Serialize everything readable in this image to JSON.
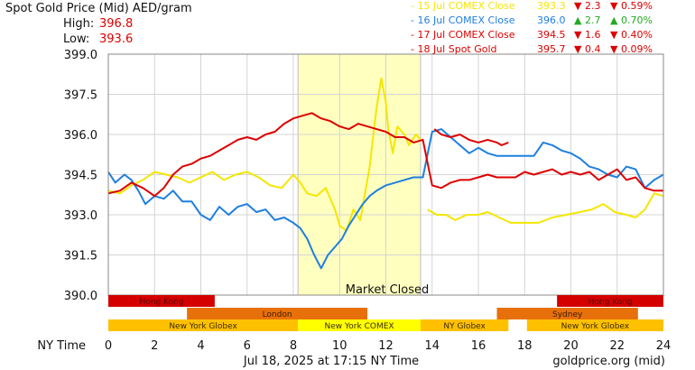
{
  "header": {
    "title": "Spot Gold Price (Mid) AED/gram",
    "high_label": "High:",
    "high_value": "396.8",
    "low_label": "Low:",
    "low_value": "393.6"
  },
  "legend": [
    {
      "label": "15 Jul COMEX Close",
      "price": "393.3",
      "arrow": "▼",
      "change": "2.3",
      "arrow2": "▼",
      "pct": "0.59%",
      "color": "#f5e600",
      "change_color": "#dd0000"
    },
    {
      "label": "16 Jul COMEX Close",
      "price": "396.0",
      "arrow": "▲",
      "change": "2.7",
      "arrow2": "▲",
      "pct": "0.70%",
      "color": "#1e7fe0",
      "change_color": "#22aa22"
    },
    {
      "label": "17 Jul COMEX Close",
      "price": "394.5",
      "arrow": "▼",
      "change": "1.6",
      "arrow2": "▼",
      "pct": "0.40%",
      "color": "#dd0000",
      "change_color": "#dd0000"
    },
    {
      "label": "18 Jul Spot Gold",
      "price": "395.7",
      "arrow": "▼",
      "change": "0.4",
      "arrow2": "▼",
      "pct": "0.09%",
      "color": "#dd0000",
      "change_color": "#dd0000"
    }
  ],
  "footer": {
    "x_axis_title": "NY Time",
    "timestamp": "Jul 18, 2025 at 17:15 NY Time",
    "source": "goldprice.org (mid)"
  },
  "market_closed_label": "Market Closed",
  "sessions": [
    {
      "label": "Hong Kong",
      "start": 0,
      "end": 4.6,
      "row": 0,
      "color": "#d40000",
      "text_color": "#5a0000"
    },
    {
      "label": "Hong Kong",
      "start": 19.4,
      "end": 24,
      "row": 0,
      "color": "#d40000",
      "text_color": "#5a0000"
    },
    {
      "label": "London",
      "start": 3.4,
      "end": 11.2,
      "row": 1,
      "color": "#e8700a",
      "text_color": "#3a1a00"
    },
    {
      "label": "Sydney",
      "start": 16.8,
      "end": 22.9,
      "row": 1,
      "color": "#e8700a",
      "text_color": "#3a1a00"
    },
    {
      "label": "New York Globex",
      "start": 0,
      "end": 8.2,
      "row": 2,
      "color": "#ffc000",
      "text_color": "#3a2a00"
    },
    {
      "label": "New York COMEX",
      "start": 8.2,
      "end": 13.5,
      "row": 2,
      "color": "#ffff00",
      "text_color": "#3a2a00"
    },
    {
      "label": "NY Globex",
      "start": 13.5,
      "end": 17.3,
      "row": 2,
      "color": "#ffc000",
      "text_color": "#3a2a00"
    },
    {
      "label": "New York Globex",
      "start": 18.1,
      "end": 24,
      "row": 2,
      "color": "#ffc000",
      "text_color": "#3a2a00"
    }
  ],
  "chart_data": {
    "type": "line",
    "xlabel": "NY Time",
    "ylabel": "",
    "xlim": [
      0,
      24
    ],
    "ylim": [
      390.0,
      399.0
    ],
    "x_ticks": [
      0,
      2,
      4,
      6,
      8,
      10,
      12,
      14,
      16,
      18,
      20,
      22,
      24
    ],
    "x_tick_labels": [
      "0",
      "2",
      "4",
      "6",
      "8",
      "10",
      "12",
      "14",
      "16",
      "18",
      "20",
      "22",
      "24"
    ],
    "y_ticks": [
      390.0,
      391.5,
      393.0,
      394.5,
      396.0,
      397.5,
      399.0
    ],
    "y_tick_labels": [
      "390.0",
      "391.5",
      "393.0",
      "394.5",
      "396.0",
      "397.5",
      "399.0"
    ],
    "grid": true,
    "shaded_region": {
      "label": "Market Closed",
      "x_start": 8.2,
      "x_end": 13.5
    },
    "series": [
      {
        "name": "15 Jul COMEX Close",
        "color": "#f5e600",
        "segments": [
          [
            [
              0,
              393.9
            ],
            [
              0.5,
              393.8
            ],
            [
              1,
              394.1
            ],
            [
              1.5,
              394.3
            ],
            [
              2,
              394.6
            ],
            [
              2.5,
              394.5
            ],
            [
              3,
              394.4
            ],
            [
              3.5,
              394.2
            ],
            [
              4,
              394.4
            ],
            [
              4.5,
              394.6
            ],
            [
              5,
              394.3
            ],
            [
              5.5,
              394.5
            ],
            [
              6,
              394.6
            ],
            [
              6.5,
              394.4
            ],
            [
              7,
              394.1
            ],
            [
              7.5,
              394.0
            ],
            [
              8,
              394.5
            ],
            [
              8.3,
              394.2
            ],
            [
              8.6,
              393.8
            ],
            [
              9,
              393.7
            ],
            [
              9.4,
              394.0
            ],
            [
              9.8,
              393.2
            ],
            [
              10,
              392.6
            ],
            [
              10.3,
              392.4
            ],
            [
              10.6,
              393.2
            ],
            [
              10.9,
              392.8
            ],
            [
              11.1,
              393.8
            ],
            [
              11.3,
              394.8
            ],
            [
              11.5,
              396.3
            ],
            [
              11.6,
              397.0
            ],
            [
              11.8,
              398.1
            ],
            [
              12.0,
              397.2
            ],
            [
              12.1,
              396.2
            ],
            [
              12.3,
              395.3
            ],
            [
              12.5,
              396.3
            ],
            [
              12.8,
              396.0
            ],
            [
              13.0,
              395.6
            ],
            [
              13.3,
              396.0
            ],
            [
              13.5,
              395.8
            ]
          ],
          [
            [
              13.8,
              393.2
            ],
            [
              14.2,
              393.0
            ],
            [
              14.6,
              393.0
            ],
            [
              15.0,
              392.8
            ],
            [
              15.5,
              393.0
            ],
            [
              16.0,
              393.0
            ],
            [
              16.4,
              393.1
            ],
            [
              16.9,
              392.9
            ],
            [
              17.4,
              392.7
            ],
            [
              18.0,
              392.7
            ],
            [
              18.6,
              392.7
            ],
            [
              19.2,
              392.9
            ],
            [
              19.8,
              393.0
            ],
            [
              20.4,
              393.1
            ],
            [
              20.9,
              393.2
            ],
            [
              21.4,
              393.4
            ],
            [
              21.9,
              393.1
            ],
            [
              22.4,
              393.0
            ],
            [
              22.8,
              392.9
            ],
            [
              23.2,
              393.2
            ],
            [
              23.6,
              393.8
            ],
            [
              24.0,
              393.7
            ]
          ]
        ]
      },
      {
        "name": "16 Jul COMEX Close",
        "color": "#1e7fe0",
        "segments": [
          [
            [
              0,
              394.6
            ],
            [
              0.3,
              394.2
            ],
            [
              0.7,
              394.5
            ],
            [
              1.0,
              394.3
            ],
            [
              1.3,
              393.9
            ],
            [
              1.6,
              393.4
            ],
            [
              2.0,
              393.7
            ],
            [
              2.4,
              393.6
            ],
            [
              2.8,
              393.9
            ],
            [
              3.2,
              393.5
            ],
            [
              3.6,
              393.5
            ],
            [
              4.0,
              393.0
            ],
            [
              4.4,
              392.8
            ],
            [
              4.8,
              393.3
            ],
            [
              5.2,
              393.0
            ],
            [
              5.6,
              393.3
            ],
            [
              6.0,
              393.4
            ],
            [
              6.4,
              393.1
            ],
            [
              6.8,
              393.2
            ],
            [
              7.2,
              392.8
            ],
            [
              7.6,
              392.9
            ],
            [
              8.0,
              392.7
            ],
            [
              8.3,
              392.5
            ],
            [
              8.6,
              392.1
            ],
            [
              8.9,
              391.5
            ],
            [
              9.2,
              391.0
            ],
            [
              9.5,
              391.5
            ],
            [
              9.8,
              391.8
            ],
            [
              10.1,
              392.1
            ],
            [
              10.4,
              392.6
            ],
            [
              10.7,
              393.0
            ],
            [
              11.0,
              393.4
            ],
            [
              11.3,
              393.7
            ],
            [
              11.6,
              393.9
            ],
            [
              12.0,
              394.1
            ],
            [
              12.4,
              394.2
            ],
            [
              12.8,
              394.3
            ],
            [
              13.2,
              394.4
            ],
            [
              13.6,
              394.4
            ],
            [
              14.0,
              396.1
            ],
            [
              14.4,
              396.2
            ],
            [
              14.8,
              395.9
            ],
            [
              15.2,
              395.6
            ],
            [
              15.6,
              395.3
            ],
            [
              16.0,
              395.5
            ],
            [
              16.4,
              395.3
            ],
            [
              16.8,
              395.2
            ],
            [
              17.2,
              395.2
            ],
            [
              17.6,
              395.2
            ],
            [
              18.0,
              395.2
            ],
            [
              18.4,
              395.2
            ],
            [
              18.8,
              395.7
            ],
            [
              19.2,
              395.6
            ],
            [
              19.6,
              395.4
            ],
            [
              20.0,
              395.3
            ],
            [
              20.4,
              395.1
            ],
            [
              20.8,
              394.8
            ],
            [
              21.2,
              394.7
            ],
            [
              21.6,
              394.5
            ],
            [
              22.0,
              394.4
            ],
            [
              22.4,
              394.8
            ],
            [
              22.8,
              394.7
            ],
            [
              23.2,
              394.0
            ],
            [
              23.6,
              394.3
            ],
            [
              24.0,
              394.5
            ]
          ]
        ]
      },
      {
        "name": "17 Jul COMEX Close",
        "color": "#dd0000",
        "segments": [
          [
            [
              0,
              393.8
            ],
            [
              0.5,
              393.9
            ],
            [
              1.0,
              394.2
            ],
            [
              1.5,
              394.0
            ],
            [
              2.0,
              393.7
            ],
            [
              2.4,
              394.0
            ],
            [
              2.8,
              394.5
            ],
            [
              3.2,
              394.8
            ],
            [
              3.6,
              394.9
            ],
            [
              4.0,
              395.1
            ],
            [
              4.4,
              395.2
            ],
            [
              4.8,
              395.4
            ],
            [
              5.2,
              395.6
            ],
            [
              5.6,
              395.8
            ],
            [
              6.0,
              395.9
            ],
            [
              6.4,
              395.8
            ],
            [
              6.8,
              396.0
            ],
            [
              7.2,
              396.1
            ],
            [
              7.6,
              396.4
            ],
            [
              8.0,
              396.6
            ],
            [
              8.4,
              396.7
            ],
            [
              8.8,
              396.8
            ],
            [
              9.2,
              396.6
            ],
            [
              9.6,
              396.5
            ],
            [
              10.0,
              396.3
            ],
            [
              10.4,
              396.2
            ],
            [
              10.8,
              396.4
            ],
            [
              11.2,
              396.3
            ],
            [
              11.6,
              396.2
            ],
            [
              12.0,
              396.1
            ],
            [
              12.4,
              395.9
            ],
            [
              12.8,
              395.9
            ],
            [
              13.2,
              395.7
            ],
            [
              13.6,
              395.8
            ],
            [
              14.0,
              394.1
            ],
            [
              14.4,
              394.0
            ],
            [
              14.8,
              394.2
            ],
            [
              15.2,
              394.3
            ],
            [
              15.6,
              394.3
            ],
            [
              16.0,
              394.4
            ],
            [
              16.4,
              394.5
            ],
            [
              16.8,
              394.4
            ],
            [
              17.2,
              394.4
            ],
            [
              17.6,
              394.4
            ],
            [
              18.0,
              394.6
            ],
            [
              18.4,
              394.5
            ],
            [
              18.8,
              394.6
            ],
            [
              19.2,
              394.7
            ],
            [
              19.6,
              394.5
            ],
            [
              20.0,
              394.6
            ],
            [
              20.4,
              394.5
            ],
            [
              20.8,
              394.6
            ],
            [
              21.2,
              394.3
            ],
            [
              21.6,
              394.5
            ],
            [
              22.0,
              394.7
            ],
            [
              22.4,
              394.3
            ],
            [
              22.8,
              394.4
            ],
            [
              23.2,
              394.0
            ],
            [
              23.6,
              393.9
            ],
            [
              24.0,
              393.9
            ]
          ]
        ]
      },
      {
        "name": "18 Jul Spot Gold",
        "color": "#dd0000",
        "segments": [
          [
            [
              14.1,
              396.2
            ],
            [
              14.4,
              396.0
            ],
            [
              14.8,
              395.9
            ],
            [
              15.2,
              396.0
            ],
            [
              15.6,
              395.8
            ],
            [
              16.0,
              395.7
            ],
            [
              16.4,
              395.8
            ],
            [
              16.8,
              395.7
            ],
            [
              17.0,
              395.6
            ],
            [
              17.3,
              395.7
            ]
          ]
        ]
      }
    ]
  }
}
